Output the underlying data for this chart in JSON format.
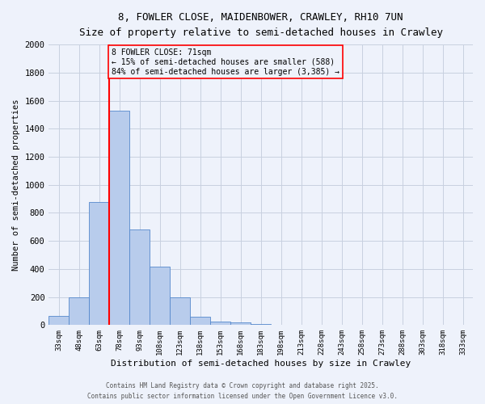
{
  "title1": "8, FOWLER CLOSE, MAIDENBOWER, CRAWLEY, RH10 7UN",
  "title2": "Size of property relative to semi-detached houses in Crawley",
  "xlabel": "Distribution of semi-detached houses by size in Crawley",
  "ylabel": "Number of semi-detached properties",
  "bar_labels": [
    "33sqm",
    "48sqm",
    "63sqm",
    "78sqm",
    "93sqm",
    "108sqm",
    "123sqm",
    "138sqm",
    "153sqm",
    "168sqm",
    "183sqm",
    "198sqm",
    "213sqm",
    "228sqm",
    "243sqm",
    "258sqm",
    "273sqm",
    "288sqm",
    "303sqm",
    "318sqm",
    "333sqm"
  ],
  "bar_values": [
    65,
    200,
    875,
    1530,
    680,
    415,
    200,
    60,
    25,
    20,
    10,
    0,
    0,
    0,
    0,
    0,
    0,
    0,
    0,
    0,
    0
  ],
  "bar_color": "#b8ccec",
  "bar_edgecolor": "#5588cc",
  "red_line_x": 2.5,
  "annotation_text": "8 FOWLER CLOSE: 71sqm\n← 15% of semi-detached houses are smaller (588)\n84% of semi-detached houses are larger (3,385) →",
  "vline_color": "red",
  "ylim": [
    0,
    2000
  ],
  "yticks": [
    0,
    200,
    400,
    600,
    800,
    1000,
    1200,
    1400,
    1600,
    1800,
    2000
  ],
  "footer1": "Contains HM Land Registry data © Crown copyright and database right 2025.",
  "footer2": "Contains public sector information licensed under the Open Government Licence v3.0.",
  "bg_color": "#eef2fb",
  "grid_color": "#c8d0e0"
}
